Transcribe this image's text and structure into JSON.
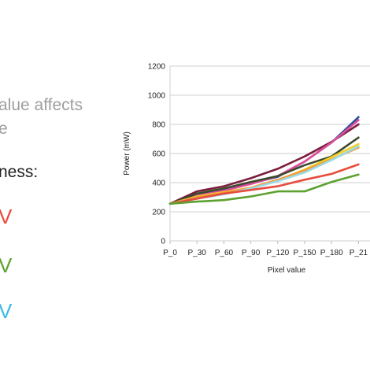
{
  "slide": {
    "title_fragment": "",
    "desc_line1": "alue affects",
    "desc_line2": "e",
    "label_fragment": "ness:",
    "value1_fragment": "V",
    "value2_fragment": "V",
    "value3_fragment": "V",
    "value_colors": [
      "#e74c3c",
      "#5da130",
      "#38bde3"
    ]
  },
  "chart_data": {
    "type": "line",
    "title": "",
    "xlabel": "Pixel value",
    "ylabel": "Power (mW)",
    "categories": [
      "P_0",
      "P_30",
      "P_60",
      "P_90",
      "P_120",
      "P_150",
      "P_180",
      "P_21"
    ],
    "ylim": [
      0,
      1200
    ],
    "yticks": [
      0,
      200,
      400,
      600,
      800,
      1000,
      1200
    ],
    "grid": true,
    "series": [
      {
        "color": "#7b1e3c",
        "values": [
          255,
          340,
          375,
          430,
          495,
          580,
          680,
          800
        ]
      },
      {
        "color": "#1f4e9c",
        "values": [
          255,
          320,
          355,
          395,
          440,
          545,
          675,
          850
        ]
      },
      {
        "color": "#e04e9a",
        "values": [
          255,
          310,
          345,
          390,
          445,
          545,
          675,
          830
        ]
      },
      {
        "color": "#3c4a2c",
        "values": [
          255,
          325,
          360,
          405,
          445,
          520,
          580,
          710
        ]
      },
      {
        "color": "#f2d024",
        "values": [
          255,
          305,
          335,
          365,
          415,
          490,
          575,
          665
        ]
      },
      {
        "color": "#f39c34",
        "values": [
          255,
          300,
          330,
          365,
          420,
          485,
          560,
          640
        ]
      },
      {
        "color": "#9cd9e6",
        "values": [
          255,
          290,
          320,
          360,
          410,
          470,
          555,
          650
        ]
      },
      {
        "color": "#e74c3c",
        "values": [
          255,
          290,
          325,
          350,
          375,
          420,
          460,
          525
        ]
      },
      {
        "color": "#5da130",
        "values": [
          255,
          270,
          280,
          305,
          340,
          340,
          405,
          455
        ]
      }
    ]
  }
}
